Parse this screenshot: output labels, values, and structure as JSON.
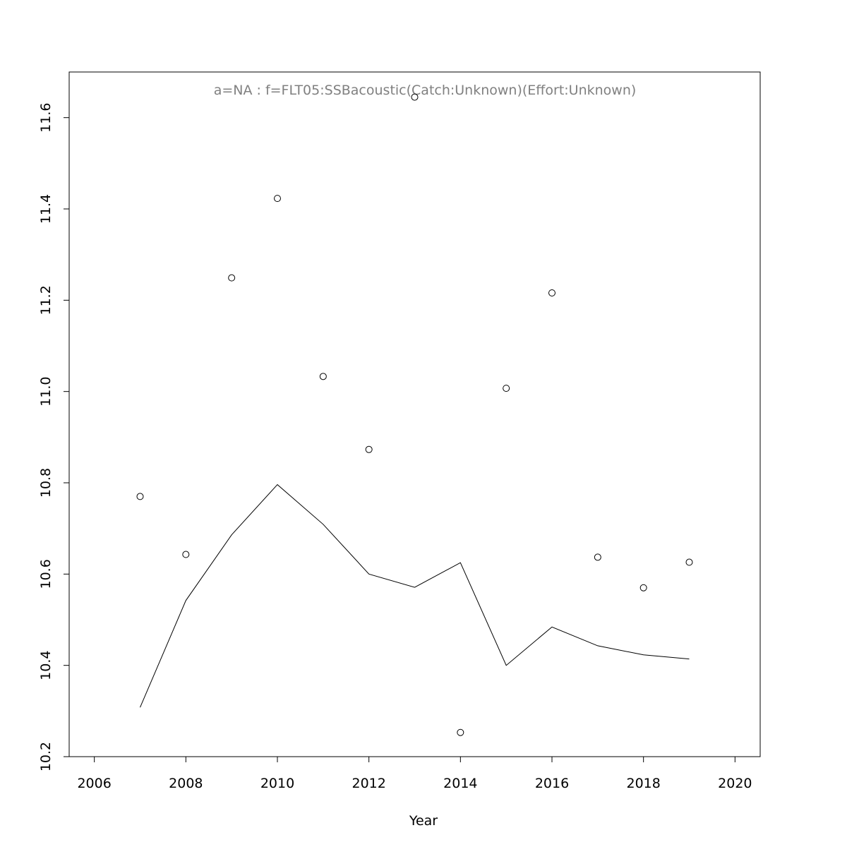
{
  "chart_data": {
    "type": "scatter",
    "title": "a=NA  :  f=FLT05:SSBacoustic(Catch:Unknown)(Effort:Unknown)",
    "xlabel": "Year",
    "ylabel": "",
    "xlim": [
      2005.45,
      2020.55
    ],
    "ylim": [
      10.2,
      11.7
    ],
    "x_ticks": [
      2006,
      2008,
      2010,
      2012,
      2014,
      2016,
      2018,
      2020
    ],
    "y_ticks": [
      10.2,
      10.4,
      10.6,
      10.8,
      11.0,
      11.2,
      11.4,
      11.6
    ],
    "grid": false,
    "series": [
      {
        "mark": "point",
        "x": [
          2007,
          2008,
          2009,
          2010,
          2011,
          2012,
          2013,
          2014,
          2015,
          2016,
          2017,
          2018,
          2019
        ],
        "y": [
          10.77,
          10.643,
          11.249,
          11.423,
          11.033,
          10.873,
          11.645,
          10.253,
          11.007,
          11.216,
          10.637,
          10.57,
          10.626
        ]
      },
      {
        "mark": "line",
        "x": [
          2007,
          2008,
          2009,
          2010,
          2011,
          2012,
          2013,
          2014,
          2015,
          2016,
          2017,
          2018,
          2019
        ],
        "y": [
          10.308,
          10.542,
          10.686,
          10.796,
          10.709,
          10.6,
          10.571,
          10.625,
          10.4,
          10.484,
          10.443,
          10.423,
          10.414
        ]
      }
    ]
  }
}
